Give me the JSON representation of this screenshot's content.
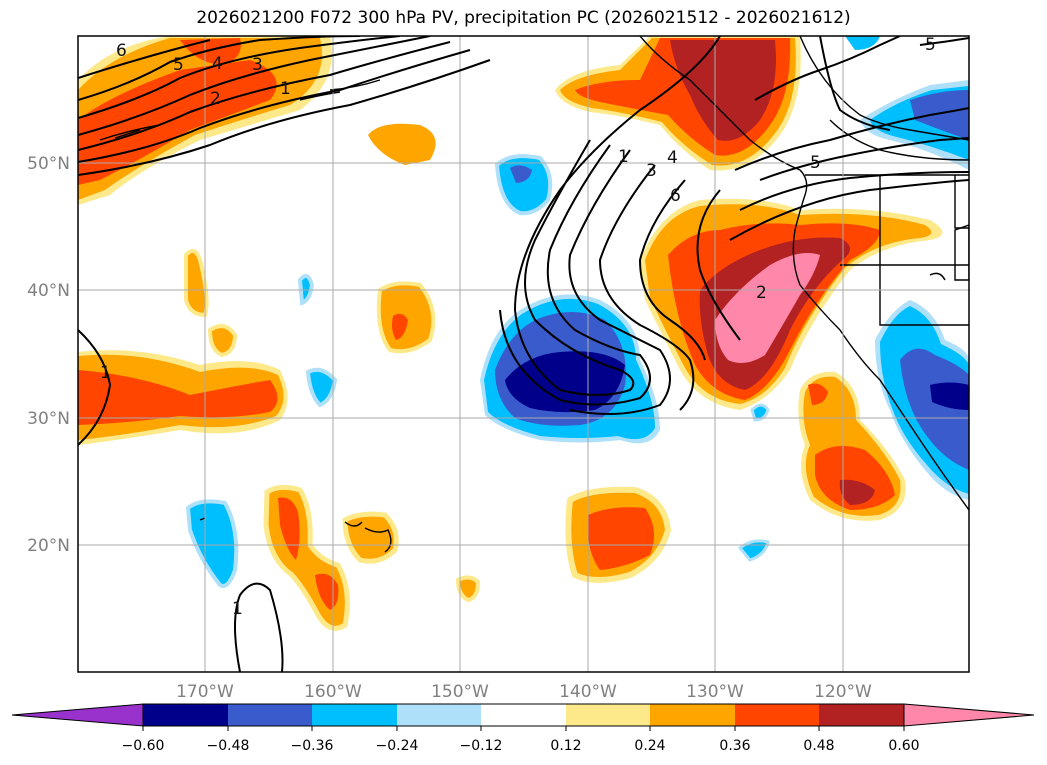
{
  "title": "2026021200 F072 300 hPa PV, precipitation PC (2026021512 - 2026021612)",
  "lat_labels": [
    "50°N",
    "40°N",
    "30°N",
    "20°N"
  ],
  "lon_labels": [
    "170°W",
    "160°W",
    "150°W",
    "140°W",
    "130°W",
    "120°W"
  ],
  "colorbar": {
    "ticks": [
      "−0.60",
      "−0.48",
      "−0.36",
      "−0.24",
      "−0.12",
      "0.12",
      "0.24",
      "0.36",
      "0.48",
      "0.60"
    ],
    "colors": [
      "#9932cc",
      "#00008b",
      "#3a5bcc",
      "#00bfff",
      "#afe0fa",
      "#ffffff",
      "#fde98a",
      "#ffa500",
      "#ff4500",
      "#b22222",
      "#ff88aa"
    ]
  },
  "contour_labels": [
    "6",
    "5",
    "4",
    "3",
    "2",
    "1",
    "1",
    "3",
    "4",
    "6",
    "2",
    "5",
    "5",
    "1",
    "1"
  ],
  "palette": {
    "pink": "#ff88aa",
    "darkred": "#b22222",
    "red": "#ff4500",
    "orange": "#ffa500",
    "yellow": "#fde98a",
    "lightblue": "#afe0fa",
    "cyan": "#00bfff",
    "blue": "#3a5bcc",
    "navy": "#00008b"
  }
}
